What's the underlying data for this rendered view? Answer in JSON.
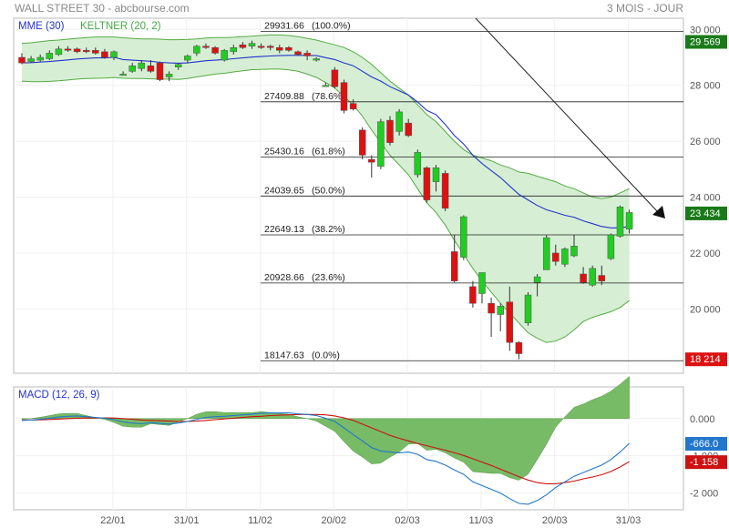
{
  "header": {
    "left": "WALL STREET 30 - abcbourse.com",
    "right": "3 MOIS - JOUR"
  },
  "legend": {
    "mme": "MME (30)",
    "keltner": "KELTNER (20, 2)",
    "macd": "MACD (12, 26, 9)"
  },
  "colors": {
    "up": "#22cc22",
    "down": "#dd1111",
    "mme": "#2233cc",
    "band_fill": "#cfeccc",
    "band_line": "#55aa44",
    "macd_line": "#2277cc",
    "signal_line": "#cc1111",
    "hist_fill": "#77bb66",
    "price_badge": "#1a7a1a",
    "axis_text": "#555555"
  },
  "chart_data": [
    {
      "type": "candlestick",
      "name": "price",
      "x_ticks": [
        "22/01",
        "31/01",
        "11/02",
        "20/02",
        "02/03",
        "11/03",
        "20/03",
        "31/03"
      ],
      "y_ticks": [
        "30 000",
        "28 000",
        "26 000",
        "24 000",
        "22 000",
        "20 000"
      ],
      "y_tick_values": [
        30000,
        28000,
        26000,
        24000,
        22000,
        20000
      ],
      "ylim": [
        17700,
        30400
      ],
      "price_labels": [
        {
          "text": "29 569",
          "value": 29569,
          "color": "#1a7a1a"
        },
        {
          "text": "23 434",
          "value": 23434,
          "color": "#1a7a1a"
        },
        {
          "text": "18 214",
          "value": 18214,
          "color": "#dd1111"
        }
      ],
      "fibonacci": [
        {
          "label": "29931.66",
          "pct": "(100.0%)",
          "value": 29931.66
        },
        {
          "label": "27409.88",
          "pct": "(78.6%)",
          "value": 27409.88
        },
        {
          "label": "25430.16",
          "pct": "(61.8%)",
          "value": 25430.16
        },
        {
          "label": "24039.65",
          "pct": "(50.0%)",
          "value": 24039.65
        },
        {
          "label": "22649.13",
          "pct": "(38.2%)",
          "value": 22649.13
        },
        {
          "label": "20928.66",
          "pct": "(23.6%)",
          "value": 20928.66
        },
        {
          "label": "18147.63",
          "pct": "(0.0%)",
          "value": 18147.63
        }
      ],
      "candles": [
        {
          "o": 29000,
          "h": 29150,
          "l": 28750,
          "c": 28800
        },
        {
          "o": 28850,
          "h": 29050,
          "l": 28800,
          "c": 28950
        },
        {
          "o": 28900,
          "h": 29100,
          "l": 28850,
          "c": 29000
        },
        {
          "o": 28950,
          "h": 29250,
          "l": 28900,
          "c": 29150
        },
        {
          "o": 29100,
          "h": 29400,
          "l": 29050,
          "c": 29300
        },
        {
          "o": 29300,
          "h": 29400,
          "l": 29200,
          "c": 29250
        },
        {
          "o": 29300,
          "h": 29350,
          "l": 29150,
          "c": 29200
        },
        {
          "o": 29250,
          "h": 29350,
          "l": 29150,
          "c": 29200
        },
        {
          "o": 29250,
          "h": 29350,
          "l": 29100,
          "c": 29150
        },
        {
          "o": 29200,
          "h": 29300,
          "l": 28950,
          "c": 29000
        },
        {
          "o": 29000,
          "h": 29250,
          "l": 28900,
          "c": 29200
        },
        {
          "o": 28400,
          "h": 28500,
          "l": 28350,
          "c": 28400
        },
        {
          "o": 28500,
          "h": 28800,
          "l": 28450,
          "c": 28700
        },
        {
          "o": 28600,
          "h": 28900,
          "l": 28500,
          "c": 28800
        },
        {
          "o": 28700,
          "h": 28900,
          "l": 28450,
          "c": 28500
        },
        {
          "o": 28800,
          "h": 28850,
          "l": 28150,
          "c": 28200
        },
        {
          "o": 28300,
          "h": 28500,
          "l": 28150,
          "c": 28400
        },
        {
          "o": 28650,
          "h": 28800,
          "l": 28550,
          "c": 28750
        },
        {
          "o": 28900,
          "h": 29100,
          "l": 28800,
          "c": 29050
        },
        {
          "o": 29150,
          "h": 29450,
          "l": 29050,
          "c": 29400
        },
        {
          "o": 29400,
          "h": 29500,
          "l": 29300,
          "c": 29350
        },
        {
          "o": 29350,
          "h": 29400,
          "l": 29100,
          "c": 29150
        },
        {
          "o": 28900,
          "h": 29300,
          "l": 28850,
          "c": 29250
        },
        {
          "o": 29200,
          "h": 29450,
          "l": 29100,
          "c": 29350
        },
        {
          "o": 29450,
          "h": 29550,
          "l": 29300,
          "c": 29350
        },
        {
          "o": 29400,
          "h": 29600,
          "l": 29300,
          "c": 29500
        },
        {
          "o": 29400,
          "h": 29500,
          "l": 29300,
          "c": 29350
        },
        {
          "o": 29400,
          "h": 29450,
          "l": 29250,
          "c": 29350
        },
        {
          "o": 29350,
          "h": 29450,
          "l": 29150,
          "c": 29250
        },
        {
          "o": 29350,
          "h": 29400,
          "l": 29200,
          "c": 29250
        },
        {
          "o": 29200,
          "h": 29250,
          "l": 29050,
          "c": 29100
        },
        {
          "o": 29150,
          "h": 29250,
          "l": 28900,
          "c": 29050
        },
        {
          "o": 28900,
          "h": 29000,
          "l": 28850,
          "c": 28950
        },
        {
          "o": 28000,
          "h": 28100,
          "l": 28000,
          "c": 28000
        },
        {
          "o": 28550,
          "h": 28650,
          "l": 27900,
          "c": 27950
        },
        {
          "o": 28100,
          "h": 28200,
          "l": 27000,
          "c": 27100
        },
        {
          "o": 27350,
          "h": 27500,
          "l": 27100,
          "c": 27150
        },
        {
          "o": 26400,
          "h": 26500,
          "l": 25350,
          "c": 25500
        },
        {
          "o": 25350,
          "h": 25500,
          "l": 24700,
          "c": 25250
        },
        {
          "o": 25100,
          "h": 26800,
          "l": 25000,
          "c": 26700
        },
        {
          "o": 26750,
          "h": 26900,
          "l": 25850,
          "c": 25950
        },
        {
          "o": 26350,
          "h": 27150,
          "l": 26200,
          "c": 27050
        },
        {
          "o": 26650,
          "h": 26800,
          "l": 26150,
          "c": 26200
        },
        {
          "o": 24800,
          "h": 25700,
          "l": 24700,
          "c": 25600
        },
        {
          "o": 25050,
          "h": 25100,
          "l": 23800,
          "c": 23900
        },
        {
          "o": 24550,
          "h": 25150,
          "l": 24200,
          "c": 25050
        },
        {
          "o": 24850,
          "h": 24950,
          "l": 23500,
          "c": 23600
        },
        {
          "o": 22050,
          "h": 22650,
          "l": 20950,
          "c": 21000
        },
        {
          "o": 21850,
          "h": 23350,
          "l": 21750,
          "c": 23300
        },
        {
          "o": 20800,
          "h": 21000,
          "l": 20050,
          "c": 20200
        },
        {
          "o": 20550,
          "h": 21300,
          "l": 20200,
          "c": 21300
        },
        {
          "o": 20200,
          "h": 20400,
          "l": 19000,
          "c": 19850
        },
        {
          "o": 19800,
          "h": 20200,
          "l": 19200,
          "c": 20100
        },
        {
          "o": 20250,
          "h": 20800,
          "l": 18500,
          "c": 18800
        },
        {
          "o": 18800,
          "h": 18850,
          "l": 18200,
          "c": 18400
        },
        {
          "o": 19500,
          "h": 20600,
          "l": 19400,
          "c": 20500
        },
        {
          "o": 20950,
          "h": 21250,
          "l": 20450,
          "c": 21150
        },
        {
          "o": 21400,
          "h": 22650,
          "l": 21400,
          "c": 22550
        },
        {
          "o": 22000,
          "h": 22300,
          "l": 21550,
          "c": 21700
        },
        {
          "o": 21600,
          "h": 22200,
          "l": 21500,
          "c": 22150
        },
        {
          "o": 21900,
          "h": 22650,
          "l": 21850,
          "c": 22250
        },
        {
          "o": 21250,
          "h": 21500,
          "l": 20900,
          "c": 20950
        },
        {
          "o": 20850,
          "h": 21550,
          "l": 20800,
          "c": 21450
        },
        {
          "o": 21200,
          "h": 21550,
          "l": 20850,
          "c": 21000
        },
        {
          "o": 21800,
          "h": 22700,
          "l": 21750,
          "c": 22650
        },
        {
          "o": 22600,
          "h": 23700,
          "l": 22550,
          "c": 23650
        },
        {
          "o": 22850,
          "h": 23550,
          "l": 22700,
          "c": 23450
        }
      ],
      "mme_values": [
        28800,
        28810,
        28830,
        28850,
        28880,
        28910,
        28940,
        28960,
        28980,
        28980,
        29000,
        28920,
        28900,
        28880,
        28860,
        28820,
        28800,
        28790,
        28800,
        28840,
        28880,
        28900,
        28920,
        28950,
        28980,
        29010,
        29030,
        29050,
        29060,
        29070,
        29070,
        29070,
        29060,
        28990,
        28920,
        28800,
        28700,
        28500,
        28300,
        28150,
        27950,
        27800,
        27650,
        27400,
        27100,
        26950,
        26600,
        26200,
        25900,
        25500,
        25200,
        24950,
        24700,
        24400,
        24100,
        23900,
        23700,
        23550,
        23450,
        23350,
        23280,
        23150,
        23050,
        22950,
        22900,
        22900,
        22950
      ],
      "keltner_upper": [
        29500,
        29520,
        29560,
        29600,
        29620,
        29650,
        29680,
        29710,
        29730,
        29730,
        29730,
        29700,
        29680,
        29660,
        29660,
        29650,
        29630,
        29630,
        29640,
        29660,
        29690,
        29710,
        29710,
        29720,
        29740,
        29760,
        29780,
        29800,
        29800,
        29780,
        29740,
        29680,
        29620,
        29530,
        29450,
        29350,
        29200,
        29000,
        28750,
        28450,
        28150,
        27900,
        27650,
        27300,
        26950,
        26700,
        26350,
        26000,
        25700,
        25500,
        25400,
        25300,
        25150,
        25050,
        24900,
        24850,
        24750,
        24650,
        24550,
        24400,
        24300,
        24150,
        24000,
        23950,
        24000,
        24150,
        24300
      ],
      "keltner_lower": [
        28150,
        28130,
        28130,
        28140,
        28160,
        28190,
        28220,
        28240,
        28250,
        28260,
        28280,
        28250,
        28240,
        28240,
        28230,
        28220,
        28220,
        28210,
        28240,
        28300,
        28350,
        28400,
        28430,
        28480,
        28520,
        28560,
        28570,
        28580,
        28580,
        28550,
        28500,
        28400,
        28280,
        28100,
        27900,
        27600,
        27300,
        26900,
        26400,
        25950,
        25500,
        25150,
        24800,
        24300,
        23800,
        23450,
        23000,
        22450,
        21950,
        21450,
        21000,
        20600,
        20200,
        19850,
        19500,
        19150,
        18950,
        18800,
        18850,
        19000,
        19250,
        19550,
        19700,
        19800,
        19900,
        20050,
        20300
      ]
    },
    {
      "type": "macd",
      "name": "MACD (12, 26, 9)",
      "y_ticks": [
        "0.000",
        "-1 000",
        "-2 000"
      ],
      "y_tick_values": [
        0,
        -1000,
        -2000
      ],
      "ylim": [
        -2450,
        850
      ],
      "value_labels": [
        {
          "text": "-666.0",
          "value": -666,
          "color": "#2277cc"
        },
        {
          "text": "-1 158",
          "value": -1158,
          "color": "#cc1111"
        }
      ],
      "macd": [
        -50,
        -40,
        -20,
        10,
        40,
        60,
        70,
        50,
        30,
        10,
        -30,
        -90,
        -120,
        -140,
        -110,
        -130,
        -150,
        -120,
        -80,
        -20,
        30,
        50,
        60,
        80,
        100,
        120,
        140,
        150,
        150,
        150,
        130,
        110,
        80,
        10,
        -80,
        -250,
        -430,
        -600,
        -780,
        -870,
        -900,
        -920,
        -900,
        -960,
        -1100,
        -1150,
        -1250,
        -1380,
        -1500,
        -1700,
        -1800,
        -1900,
        -2000,
        -2150,
        -2280,
        -2300,
        -2200,
        -2050,
        -1850,
        -1700,
        -1550,
        -1450,
        -1350,
        -1250,
        -1100,
        -900,
        -666
      ],
      "signal": [
        -40,
        -40,
        -35,
        -25,
        -15,
        0,
        10,
        15,
        20,
        20,
        15,
        0,
        -20,
        -40,
        -50,
        -60,
        -70,
        -80,
        -80,
        -70,
        -50,
        -30,
        -10,
        10,
        30,
        50,
        60,
        80,
        90,
        100,
        110,
        110,
        110,
        100,
        70,
        20,
        -50,
        -150,
        -250,
        -350,
        -450,
        -530,
        -600,
        -670,
        -730,
        -790,
        -850,
        -920,
        -990,
        -1080,
        -1170,
        -1260,
        -1360,
        -1460,
        -1560,
        -1650,
        -1720,
        -1750,
        -1750,
        -1720,
        -1680,
        -1620,
        -1570,
        -1510,
        -1420,
        -1300,
        -1158
      ]
    }
  ]
}
